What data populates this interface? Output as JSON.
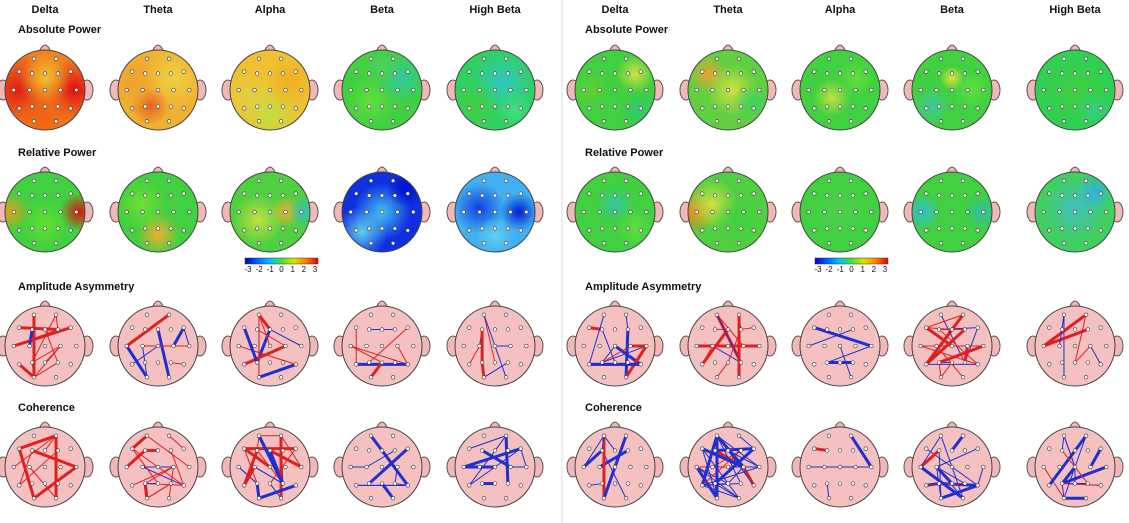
{
  "panels": [
    {
      "bands": [
        "Delta",
        "Theta",
        "Alpha",
        "Beta",
        "High Beta"
      ],
      "rows": [
        "Absolute Power",
        "Relative Power",
        "Amplitude Asymmetry",
        "Coherence"
      ],
      "colorbar_ticks": [
        -3,
        -2,
        -1,
        0,
        1,
        2,
        3
      ]
    },
    {
      "bands": [
        "Delta",
        "Theta",
        "Alpha",
        "Beta",
        "High Beta"
      ],
      "rows": [
        "Absolute Power",
        "Relative Power",
        "Amplitude Asymmetry",
        "Coherence"
      ],
      "colorbar_ticks": [
        -3,
        -2,
        -1,
        0,
        1,
        2,
        3
      ]
    }
  ]
}
